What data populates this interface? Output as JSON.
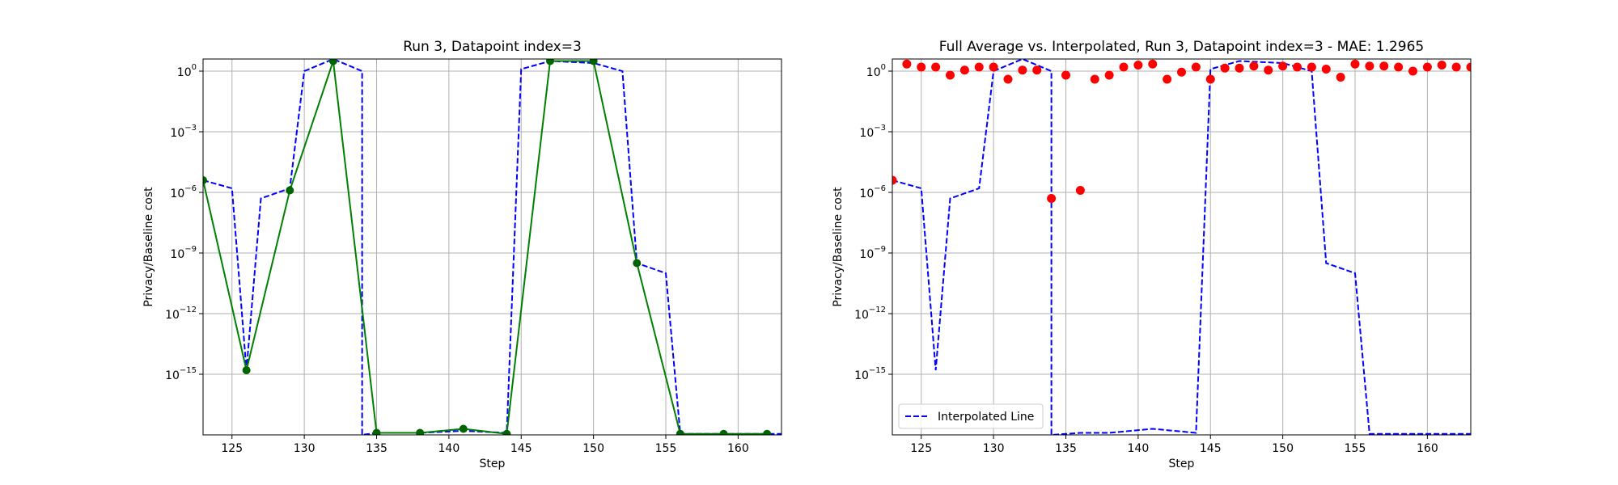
{
  "chart_data": [
    {
      "type": "line",
      "title": "Run 3, Datapoint index=3",
      "xlabel": "Step",
      "ylabel": "Privacy/Baseline cost",
      "xlim": [
        123,
        163
      ],
      "ylog": true,
      "ylim_log10": [
        -18.0,
        0.6
      ],
      "grid": true,
      "xticks": [
        125,
        130,
        135,
        140,
        145,
        150,
        155,
        160
      ],
      "yticks": [
        {
          "exp": 0,
          "label": "10",
          "sup": "0"
        },
        {
          "exp": -3,
          "label": "10",
          "sup": "−3"
        },
        {
          "exp": -6,
          "label": "10",
          "sup": "−6"
        },
        {
          "exp": -9,
          "label": "10",
          "sup": "−9"
        },
        {
          "exp": -12,
          "label": "10",
          "sup": "−12"
        },
        {
          "exp": -15,
          "label": "10",
          "sup": "−15"
        }
      ],
      "series": [
        {
          "style": "dashed",
          "color": "#0000ff",
          "x": [
            123,
            125,
            126,
            127,
            129,
            130,
            132,
            134,
            134,
            135,
            138,
            141,
            144,
            145,
            147,
            150,
            152,
            153,
            155,
            156,
            159,
            162,
            163
          ],
          "y_log10": [
            -5.4,
            -5.8,
            -14.8,
            -6.3,
            -5.8,
            0.0,
            0.6,
            0.0,
            -18.0,
            -17.9,
            -17.9,
            -17.8,
            -17.9,
            0.1,
            0.5,
            0.4,
            0.0,
            -9.5,
            -10.0,
            -17.95,
            -17.95,
            -17.95,
            -17.95
          ]
        },
        {
          "style": "solid",
          "markers": true,
          "color": "#008000",
          "marker_color": "#006400",
          "x": [
            123,
            126,
            129,
            132,
            135,
            138,
            141,
            144,
            147,
            150,
            153,
            156,
            159,
            162
          ],
          "y_log10": [
            -5.4,
            -14.8,
            -5.9,
            0.5,
            -17.9,
            -17.9,
            -17.7,
            -17.95,
            0.5,
            0.5,
            -9.5,
            -17.95,
            -17.95,
            -17.95
          ]
        }
      ]
    },
    {
      "type": "line",
      "title": "Full Average vs. Interpolated, Run 3, Datapoint index=3 - MAE: 1.2965",
      "xlabel": "Step",
      "ylabel": "Privacy/Baseline cost",
      "xlim": [
        123,
        163
      ],
      "ylog": true,
      "ylim_log10": [
        -18.0,
        0.6
      ],
      "grid": true,
      "legend_position": "lower-left",
      "xticks": [
        125,
        130,
        135,
        140,
        145,
        150,
        155,
        160
      ],
      "yticks": [
        {
          "exp": 0,
          "label": "10",
          "sup": "0"
        },
        {
          "exp": -3,
          "label": "10",
          "sup": "−3"
        },
        {
          "exp": -6,
          "label": "10",
          "sup": "−6"
        },
        {
          "exp": -9,
          "label": "10",
          "sup": "−9"
        },
        {
          "exp": -12,
          "label": "10",
          "sup": "−12"
        },
        {
          "exp": -15,
          "label": "10",
          "sup": "−15"
        }
      ],
      "series": [
        {
          "name": "Interpolated Line",
          "style": "dashed",
          "color": "#0000ff",
          "x": [
            123,
            125,
            126,
            127,
            129,
            130,
            132,
            134,
            134,
            136,
            138,
            141,
            144,
            145,
            147,
            150,
            152,
            153,
            155,
            156,
            159,
            162,
            163
          ],
          "y_log10": [
            -5.4,
            -5.8,
            -14.8,
            -6.3,
            -5.8,
            0.0,
            0.6,
            0.0,
            -18.0,
            -17.9,
            -17.9,
            -17.7,
            -17.9,
            0.1,
            0.5,
            0.4,
            0.0,
            -9.5,
            -10.0,
            -17.95,
            -17.95,
            -17.95,
            -17.95
          ]
        },
        {
          "style": "scatter",
          "color": "#ff0000",
          "x": [
            123,
            124,
            125,
            126,
            127,
            128,
            129,
            130,
            131,
            132,
            133,
            134,
            135,
            136,
            137,
            138,
            139,
            140,
            141,
            142,
            143,
            144,
            145,
            146,
            147,
            148,
            149,
            150,
            151,
            152,
            153,
            154,
            155,
            156,
            157,
            158,
            159,
            160,
            161,
            162,
            163
          ],
          "y_log10": [
            -5.4,
            0.35,
            0.2,
            0.2,
            -0.2,
            0.05,
            0.2,
            0.2,
            -0.4,
            0.05,
            0.05,
            -6.3,
            -0.2,
            -5.9,
            -0.4,
            -0.2,
            0.2,
            0.3,
            0.35,
            -0.4,
            -0.05,
            0.2,
            -0.4,
            0.15,
            0.15,
            0.25,
            0.05,
            0.25,
            0.2,
            0.2,
            0.1,
            -0.3,
            0.35,
            0.25,
            0.25,
            0.2,
            0.0,
            0.2,
            0.3,
            0.2,
            0.2
          ]
        }
      ]
    }
  ]
}
